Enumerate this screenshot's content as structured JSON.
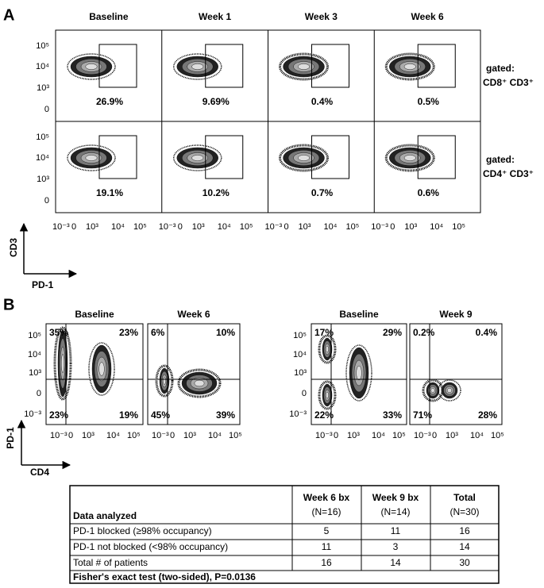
{
  "panel_a": {
    "label": "A",
    "columns": [
      "Baseline",
      "Week 1",
      "Week 3",
      "Week 6"
    ],
    "y_ticks": [
      "10⁵",
      "10⁴",
      "10³",
      "0"
    ],
    "x_ticks": [
      "10⁻³",
      "0",
      "10³",
      "10⁴",
      "10⁵"
    ],
    "rows": [
      {
        "gate_title": "gated:",
        "gate": "CD8⁺ CD3⁺",
        "percentages": [
          "26.9%",
          "9.69%",
          "0.4%",
          "0.5%"
        ]
      },
      {
        "gate_title": "gated:",
        "gate": "CD4⁺ CD3⁺",
        "percentages": [
          "19.1%",
          "10.2%",
          "0.7%",
          "0.6%"
        ]
      }
    ],
    "y_axis": "CD3",
    "x_axis": "PD-1"
  },
  "panel_b": {
    "label": "B",
    "plots": [
      {
        "title": "Baseline",
        "quadrants": [
          "35%",
          "23%",
          "23%",
          "19%"
        ]
      },
      {
        "title": "Week 6",
        "quadrants": [
          "6%",
          "10%",
          "45%",
          "39%"
        ]
      },
      {
        "title": "Baseline",
        "quadrants": [
          "17%",
          "29%",
          "22%",
          "33%"
        ]
      },
      {
        "title": "Week 9",
        "quadrants": [
          "0.2%",
          "0.4%",
          "71%",
          "28%"
        ]
      }
    ],
    "y_ticks": [
      "10⁵",
      "10⁴",
      "10³",
      "0",
      "10⁻³"
    ],
    "x_ticks": [
      "10⁻³",
      "0",
      "10³",
      "10⁴",
      "10⁵"
    ],
    "y_axis": "PD-1",
    "x_axis": "CD4"
  },
  "table": {
    "header": [
      "Data analyzed",
      "Week 6 bx",
      "Week 9 bx",
      "Total"
    ],
    "header_n": [
      "(N=16)",
      "(N=14)",
      "(N=30)"
    ],
    "rows": [
      [
        "PD-1 blocked (≥98% occupancy)",
        5,
        11,
        16
      ],
      [
        "PD-1 not blocked (<98% occupancy)",
        11,
        3,
        14
      ],
      [
        "Total # of patients",
        16,
        14,
        30
      ]
    ],
    "footer": "Fisher's exact test (two-sided), P=0.0136"
  }
}
